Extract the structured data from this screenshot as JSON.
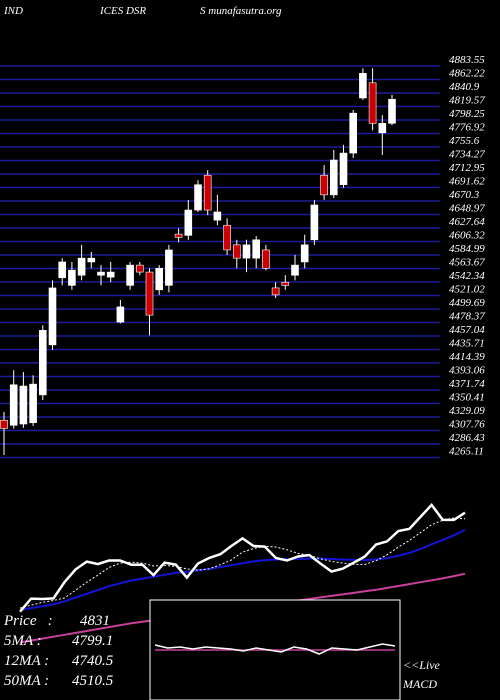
{
  "chart_data": {
    "type": "candlestick",
    "title_parts": [
      "IND",
      "ICES DSR",
      "S munafasutra.org"
    ],
    "open": [
      4324,
      4316,
      4318,
      4320,
      4364,
      4443,
      4549,
      4537,
      4553,
      4574,
      4553,
      4550,
      4479,
      4537,
      4569,
      4558,
      4530,
      4537,
      4618,
      4616,
      4656,
      4711,
      4640,
      4632,
      4601,
      4580,
      4580,
      4593,
      4533,
      4542,
      4553,
      4574,
      4609,
      4711,
      4680,
      4696,
      4746,
      4833,
      4857,
      4778,
      4793
    ],
    "high": [
      4337,
      4403,
      4400,
      4395,
      4474,
      4545,
      4580,
      4574,
      4601,
      4590,
      4569,
      4574,
      4514,
      4574,
      4574,
      4564,
      4569,
      4601,
      4627,
      4672,
      4703,
      4719,
      4680,
      4643,
      4609,
      4609,
      4615,
      4601,
      4542,
      4553,
      4585,
      4617,
      4672,
      4727,
      4751,
      4759,
      4814,
      4880,
      4880,
      4806,
      4838
    ],
    "low": [
      4269,
      4311,
      4312,
      4315,
      4356,
      4435,
      4537,
      4530,
      4545,
      4564,
      4537,
      4542,
      4477,
      4530,
      4553,
      4458,
      4522,
      4526,
      4605,
      4609,
      4653,
      4648,
      4632,
      4585,
      4564,
      4558,
      4564,
      4561,
      4517,
      4530,
      4545,
      4564,
      4601,
      4672,
      4675,
      4691,
      4738,
      4830,
      4782,
      4743,
      4790
    ],
    "close": [
      4311,
      4380,
      4378,
      4381,
      4466,
      4533,
      4574,
      4561,
      4580,
      4580,
      4558,
      4558,
      4503,
      4569,
      4558,
      4490,
      4564,
      4593,
      4613,
      4656,
      4696,
      4656,
      4653,
      4593,
      4580,
      4601,
      4609,
      4564,
      4522,
      4537,
      4569,
      4601,
      4664,
      4680,
      4735,
      4746,
      4809,
      4872,
      4793,
      4793,
      4831
    ],
    "up_color": "#ffffff",
    "down_color": "#cc0000",
    "grid_color": "#1c1c9c",
    "ylim": [
      4265.11,
      4883.55
    ],
    "yticks": [
      4265.11,
      4286.43,
      4307.76,
      4329.09,
      4350.41,
      4371.74,
      4393.06,
      4414.39,
      4435.71,
      4457.04,
      4478.37,
      4499.69,
      4521.02,
      4542.34,
      4563.67,
      4584.99,
      4606.32,
      4627.64,
      4648.97,
      4670.3,
      4691.62,
      4712.95,
      4734.27,
      4755.6,
      4776.92,
      4798.25,
      4819.57,
      4840.9,
      4862.22,
      4883.55
    ],
    "grid": true,
    "ma_panel": {
      "ylim": [
        3900,
        4950
      ],
      "series": [
        {
          "name": "5MA",
          "label": "5MA :",
          "color": "#ffffff",
          "dashed": true,
          "values": [
            4330,
            4345,
            4360,
            4370,
            4383,
            4424,
            4466,
            4503,
            4543,
            4566,
            4571,
            4566,
            4551,
            4554,
            4549,
            4536,
            4529,
            4536,
            4558,
            4583,
            4624,
            4643,
            4655,
            4651,
            4636,
            4617,
            4607,
            4589,
            4575,
            4567,
            4560,
            4559,
            4579,
            4610,
            4650,
            4685,
            4727,
            4768,
            4791,
            4803,
            4799.1
          ]
        },
        {
          "name": "12MA",
          "label": "12MA :",
          "color": "#1414d8",
          "dashed": false,
          "values": [
            4320,
            4330,
            4340,
            4350,
            4365,
            4385,
            4405,
            4425,
            4445,
            4460,
            4475,
            4485,
            4495,
            4505,
            4515,
            4520,
            4528,
            4535,
            4545,
            4555,
            4565,
            4575,
            4582,
            4585,
            4587,
            4588,
            4590,
            4590,
            4588,
            4585,
            4583,
            4582,
            4585,
            4592,
            4605,
            4620,
            4640,
            4665,
            4688,
            4712,
            4740.5
          ]
        },
        {
          "name": "50MA",
          "label": "50MA :",
          "color": "#c8409c",
          "dashed": false,
          "values": [
            4150,
            4160,
            4170,
            4180,
            4190,
            4200,
            4210,
            4220,
            4230,
            4240,
            4250,
            4258,
            4266,
            4274,
            4282,
            4290,
            4298,
            4306,
            4314,
            4322,
            4330,
            4338,
            4346,
            4354,
            4362,
            4370,
            4378,
            4386,
            4394,
            4402,
            4410,
            4418,
            4426,
            4436,
            4446,
            4456,
            4466,
            4476,
            4486,
            4498,
            4510.5
          ]
        }
      ],
      "price_label": "Price   :",
      "price_color": "#ffffff"
    },
    "macd": {
      "label": "MACD",
      "live": "<<Live",
      "ylim": [
        -2,
        2
      ],
      "macd": [
        0.5,
        0.2,
        0.3,
        0.1,
        0.3,
        0.2,
        0.1,
        -0.1,
        0.2,
        0.0,
        -0.2,
        0.3,
        0.1,
        -0.4,
        0.2,
        0.1,
        0.0,
        0.3,
        0.6,
        0.4
      ],
      "signal": [
        0,
        0,
        0,
        0,
        0,
        0,
        0,
        0,
        0,
        0,
        0,
        0,
        0,
        0,
        0,
        0,
        0,
        0,
        0,
        0
      ],
      "macd_color": "#ffffff",
      "signal_color": "#c8409c"
    }
  }
}
